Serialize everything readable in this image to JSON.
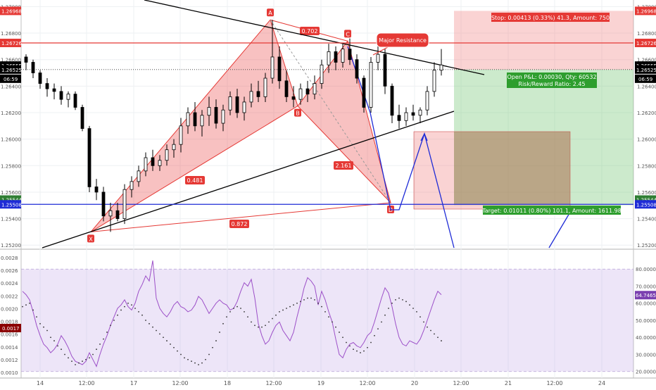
{
  "chart_data": [
    {
      "type": "candlestick",
      "x_axis_labels": [
        "14",
        "12:00",
        "17",
        "12:00",
        "18",
        "12:00",
        "19",
        "12:00",
        "20",
        "12:00",
        "21",
        "12:00",
        "24"
      ],
      "y_axis": {
        "ticks": [
          "1.27000",
          "1.26800",
          "1.26600",
          "1.26400",
          "1.26200",
          "1.26000",
          "1.25800",
          "1.25600",
          "1.25400",
          "1.25200"
        ],
        "range": [
          1.2518,
          1.2705
        ]
      },
      "candles": [
        [
          1.2662,
          1.2664,
          1.2652,
          1.2658
        ],
        [
          1.2658,
          1.266,
          1.2646,
          1.265
        ],
        [
          1.265,
          1.2652,
          1.2638,
          1.2642
        ],
        [
          1.2642,
          1.2646,
          1.2632,
          1.2638
        ],
        [
          1.2638,
          1.2642,
          1.263,
          1.2636
        ],
        [
          1.2636,
          1.264,
          1.2626,
          1.263
        ],
        [
          1.263,
          1.2636,
          1.2624,
          1.2634
        ],
        [
          1.2634,
          1.2636,
          1.2622,
          1.2624
        ],
        [
          1.2624,
          1.2626,
          1.2606,
          1.2608
        ],
        [
          1.2608,
          1.261,
          1.256,
          1.2564
        ],
        [
          1.2564,
          1.257,
          1.2554,
          1.256
        ],
        [
          1.256,
          1.2564,
          1.2538,
          1.2542
        ],
        [
          1.2542,
          1.2552,
          1.253,
          1.2546
        ],
        [
          1.2546,
          1.2552,
          1.2538,
          1.254
        ],
        [
          1.254,
          1.2566,
          1.2536,
          1.2562
        ],
        [
          1.2562,
          1.2572,
          1.2556,
          1.2568
        ],
        [
          1.2568,
          1.258,
          1.2564,
          1.2576
        ],
        [
          1.2576,
          1.259,
          1.2572,
          1.2586
        ],
        [
          1.2586,
          1.2592,
          1.2576,
          1.258
        ],
        [
          1.258,
          1.2588,
          1.2576,
          1.2584
        ],
        [
          1.2584,
          1.2596,
          1.258,
          1.2592
        ],
        [
          1.2592,
          1.26,
          1.2586,
          1.2596
        ],
        [
          1.2596,
          1.2616,
          1.259,
          1.261
        ],
        [
          1.261,
          1.2624,
          1.2604,
          1.262
        ],
        [
          1.262,
          1.2628,
          1.2606,
          1.261
        ],
        [
          1.261,
          1.2622,
          1.2602,
          1.2618
        ],
        [
          1.2618,
          1.2632,
          1.261,
          1.2624
        ],
        [
          1.2624,
          1.263,
          1.2608,
          1.2612
        ],
        [
          1.2612,
          1.2626,
          1.2606,
          1.2622
        ],
        [
          1.2622,
          1.2636,
          1.2618,
          1.2632
        ],
        [
          1.2632,
          1.2638,
          1.2616,
          1.262
        ],
        [
          1.262,
          1.2632,
          1.2614,
          1.2628
        ],
        [
          1.2628,
          1.2642,
          1.2624,
          1.2636
        ],
        [
          1.2636,
          1.2644,
          1.2628,
          1.2632
        ],
        [
          1.2632,
          1.265,
          1.2628,
          1.2646
        ],
        [
          1.2646,
          1.269,
          1.2642,
          1.2662
        ],
        [
          1.2662,
          1.267,
          1.2638,
          1.2644
        ],
        [
          1.2644,
          1.2652,
          1.2628,
          1.2632
        ],
        [
          1.2632,
          1.264,
          1.2624,
          1.263
        ],
        [
          1.263,
          1.2642,
          1.2626,
          1.2638
        ],
        [
          1.2638,
          1.2644,
          1.2628,
          1.2634
        ],
        [
          1.2634,
          1.2648,
          1.263,
          1.2642
        ],
        [
          1.2642,
          1.266,
          1.2638,
          1.2656
        ],
        [
          1.2656,
          1.2672,
          1.265,
          1.2666
        ],
        [
          1.2666,
          1.267,
          1.2652,
          1.2658
        ],
        [
          1.2658,
          1.2672,
          1.2654,
          1.2668
        ],
        [
          1.2668,
          1.2676,
          1.2656,
          1.266
        ],
        [
          1.266,
          1.2664,
          1.2642,
          1.2646
        ],
        [
          1.2646,
          1.2648,
          1.262,
          1.2624
        ],
        [
          1.2624,
          1.2662,
          1.262,
          1.2658
        ],
        [
          1.2658,
          1.2674,
          1.2652,
          1.2664
        ],
        [
          1.2664,
          1.2668,
          1.2634,
          1.264
        ],
        [
          1.264,
          1.2642,
          1.2612,
          1.2618
        ],
        [
          1.2618,
          1.2626,
          1.2608,
          1.2614
        ],
        [
          1.2614,
          1.2624,
          1.261,
          1.262
        ],
        [
          1.262,
          1.2626,
          1.2614,
          1.2618
        ],
        [
          1.2618,
          1.2624,
          1.2612,
          1.2622
        ],
        [
          1.2622,
          1.264,
          1.2618,
          1.2636
        ],
        [
          1.2636,
          1.2658,
          1.2632,
          1.2652
        ],
        [
          1.2652,
          1.2668,
          1.2648,
          1.2656
        ]
      ],
      "current_price": "1.26555",
      "countdown": "06:59",
      "price_markers": [
        {
          "label": "1.26968",
          "value": 1.26968,
          "color": "#e53935"
        },
        {
          "label": "1.26726",
          "value": 1.26726,
          "color": "#e53935"
        },
        {
          "label": "1.26555",
          "value": 1.26555,
          "color": "#000000"
        },
        {
          "label": "1.26525",
          "value": 1.26525,
          "color": "#000000"
        },
        {
          "label": "1.25544",
          "value": 1.25544,
          "color": "#2e7d32"
        },
        {
          "label": "1.25508",
          "value": 1.25508,
          "color": "#1e2bd6"
        }
      ],
      "harmonic_pattern": {
        "points": [
          {
            "label": "X",
            "value": 1.253
          },
          {
            "label": "A",
            "value": 1.269
          },
          {
            "label": "B",
            "value": 1.2625
          },
          {
            "label": "C",
            "value": 1.2674
          },
          {
            "label": "D",
            "value": 1.2552
          }
        ],
        "ratios": [
          "0.702",
          "0.481",
          "2.161",
          "0.872"
        ]
      },
      "annotations": [
        "Major Resistance"
      ],
      "position": {
        "stop_label": "Stop: 0.00413 (0.33%) 41.3, Amount: 750",
        "pnl_label": "Open P&L: 0.00030, Qty: 60532",
        "rr_label": "Risk/Reward Ratio: 2.45",
        "target_label": "Target: 0.01011 (0.80%) 101.1, Amount: 1611.98"
      }
    },
    {
      "type": "line",
      "y_axis_left": [
        "0.0028",
        "0.0026",
        "0.0024",
        "0.0022",
        "0.0020",
        "0.0018",
        "0.0016",
        "0.0014",
        "0.0012",
        "0.0010"
      ],
      "y_axis_right": [
        "80.0000",
        "70.0000",
        "60.0000",
        "50.0000",
        "40.0000",
        "30.0000",
        "20.0000"
      ],
      "left_marker": "0.0017",
      "right_marker": "64.7465",
      "ylim_right": [
        17,
        90
      ],
      "band": [
        20,
        80
      ],
      "series": [
        {
          "values": [
            67,
            65,
            62,
            55,
            47,
            41,
            36,
            34,
            31,
            33,
            36,
            41,
            38,
            34,
            29,
            26,
            25,
            24,
            26,
            31,
            27,
            23,
            30,
            36,
            41,
            47,
            52,
            57,
            59,
            62,
            58,
            56,
            60,
            67,
            71,
            76,
            73,
            85,
            63,
            57,
            54,
            52,
            55,
            59,
            61,
            58,
            57,
            55,
            56,
            59,
            64,
            62,
            58,
            54,
            57,
            60,
            62,
            60,
            59,
            56,
            57,
            61,
            67,
            72,
            70,
            74,
            63,
            48,
            41,
            36,
            38,
            43,
            47,
            49,
            44,
            41,
            38,
            43,
            52,
            60,
            69,
            75,
            73,
            70,
            59,
            67,
            62,
            55,
            49,
            39,
            30,
            28,
            33,
            36,
            37,
            35,
            34,
            37,
            41,
            43,
            49,
            56,
            63,
            69,
            66,
            58,
            48,
            40,
            36,
            35,
            38,
            37,
            36,
            39,
            44,
            50,
            56,
            62,
            67,
            65
          ]
        },
        {
          "values": [
            58,
            59,
            60,
            56,
            52,
            48,
            46,
            44,
            40,
            38,
            35,
            33,
            30,
            28,
            26,
            24,
            25,
            26,
            27,
            28,
            30,
            33,
            36,
            39,
            43,
            47,
            50,
            53,
            56,
            58,
            60,
            59,
            57,
            55,
            53,
            50,
            48,
            46,
            44,
            42,
            40,
            38,
            36,
            34,
            32,
            30,
            28,
            27,
            26,
            25,
            24,
            25,
            27,
            30,
            34,
            38,
            43,
            48,
            52,
            55,
            57,
            58,
            57,
            55,
            52,
            49,
            47,
            46,
            46,
            47,
            49,
            51,
            53,
            55,
            56,
            57,
            58,
            59,
            60,
            61,
            62,
            63,
            63,
            62,
            60,
            58,
            55,
            52,
            49,
            46,
            43,
            40,
            37,
            35,
            33,
            32,
            31,
            32,
            34,
            37,
            41,
            45,
            49,
            53,
            57,
            60,
            62,
            63,
            62,
            61,
            59,
            57,
            55,
            52,
            49,
            46,
            44,
            42,
            40,
            38
          ]
        }
      ]
    }
  ]
}
